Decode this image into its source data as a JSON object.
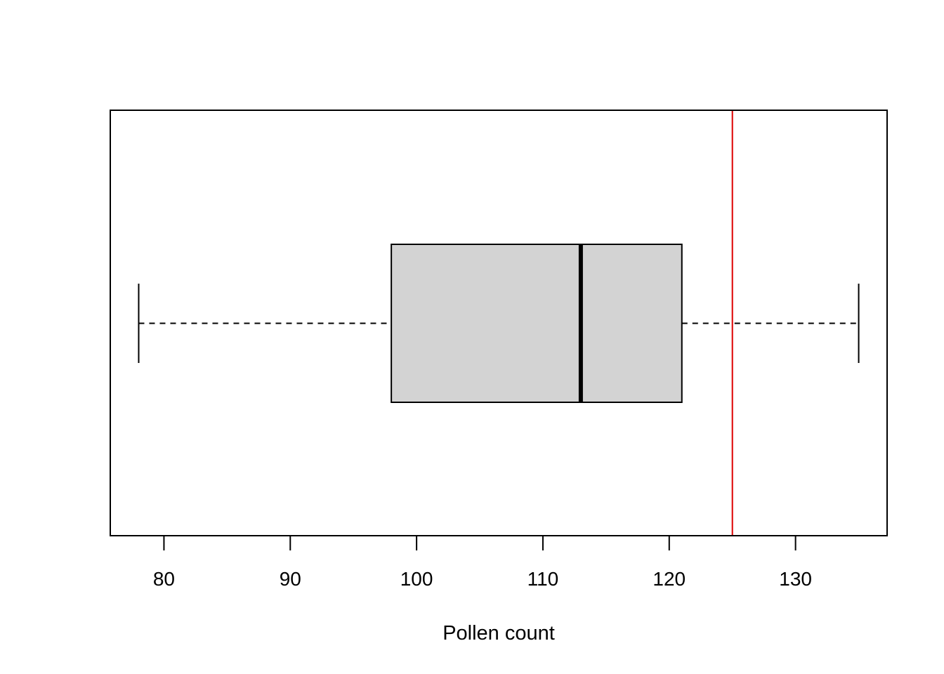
{
  "chart_data": {
    "type": "boxplot",
    "orientation": "horizontal",
    "title": "",
    "xlabel": "Pollen count",
    "ylabel": "",
    "xlim": [
      75.75,
      137.25
    ],
    "xticks": [
      80,
      90,
      100,
      110,
      120,
      130
    ],
    "xtick_labels": [
      "80",
      "90",
      "100",
      "110",
      "120",
      "130"
    ],
    "grid": false,
    "box": {
      "min": 78,
      "q1": 98,
      "median": 113,
      "q3": 121,
      "max": 135,
      "fill_color": "#d3d3d3",
      "line_color": "#000000"
    },
    "reference_line": {
      "x": 125,
      "color": "#dd0000"
    }
  }
}
